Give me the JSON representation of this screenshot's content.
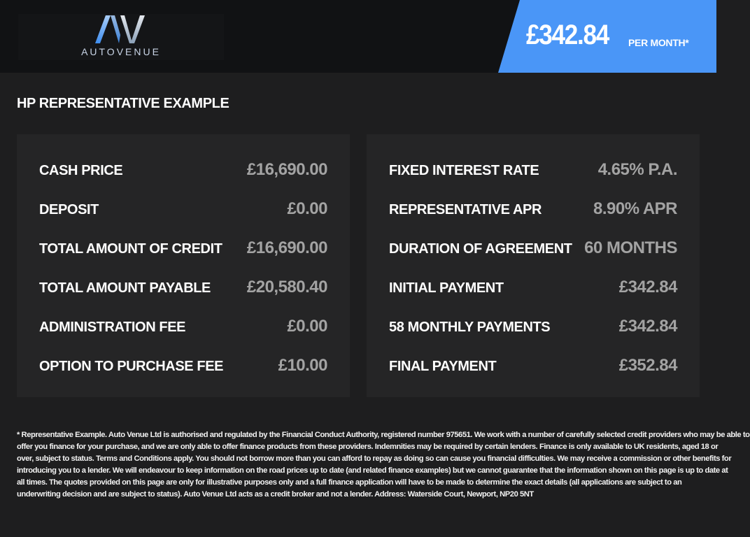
{
  "brand": {
    "logo_text": "AUTOVENUE",
    "accent": "#4a96f7"
  },
  "header": {
    "monthly_price": "£342.84",
    "per_month_label": "PER MONTH*"
  },
  "section_title": "HP REPRESENTATIVE EXAMPLE",
  "left_rows": [
    {
      "label": "CASH PRICE",
      "value": "£16,690.00"
    },
    {
      "label": "DEPOSIT",
      "value": "£0.00"
    },
    {
      "label": "TOTAL AMOUNT OF CREDIT",
      "value": "£16,690.00"
    },
    {
      "label": "TOTAL AMOUNT PAYABLE",
      "value": "£20,580.40"
    },
    {
      "label": "ADMINISTRATION FEE",
      "value": "£0.00"
    },
    {
      "label": "OPTION TO PURCHASE FEE",
      "value": "£10.00"
    }
  ],
  "right_rows": [
    {
      "label": "FIXED INTEREST RATE",
      "value": "4.65% P.A."
    },
    {
      "label": "REPRESENTATIVE APR",
      "value": "8.90% APR"
    },
    {
      "label": "DURATION OF AGREEMENT",
      "value": "60 MONTHS"
    },
    {
      "label": "INITIAL PAYMENT",
      "value": "£342.84"
    },
    {
      "label": "58 MONTHLY PAYMENTS",
      "value": "£342.84"
    },
    {
      "label": "FINAL PAYMENT",
      "value": "£352.84"
    }
  ],
  "disclaimer_lines": [
    "* Representative Example. Auto Venue Ltd is authorised and regulated by the Financial Conduct Authority, registered number 975651. We work with a number of carefully selected credit providers who may be able to",
    "offer you finance for your purchase, and we are only able to offer finance products from these providers. Indemnities may be required by certain lenders. Finance is only available to UK residents, aged 18 or",
    "over, subject to status. Terms and Conditions apply. You should not borrow more than you can afford to repay as doing so can cause you financial difficulties. We may receive a commission or other benefits for",
    "introducing you to a lender. We will endeavour to keep information on the road prices up to date (and related finance examples) but we cannot guarantee that the information shown on this page is up to date at",
    "all times. The quotes provided on this page are only for illustrative purposes only and a full finance application will have to be made to determine the exact details (all applications are subject to an",
    "underwriting decision and are subject to status). Auto Venue Ltd acts as a credit broker and not a lender. Address: Waterside Court, Newport, NP20 5NT"
  ]
}
